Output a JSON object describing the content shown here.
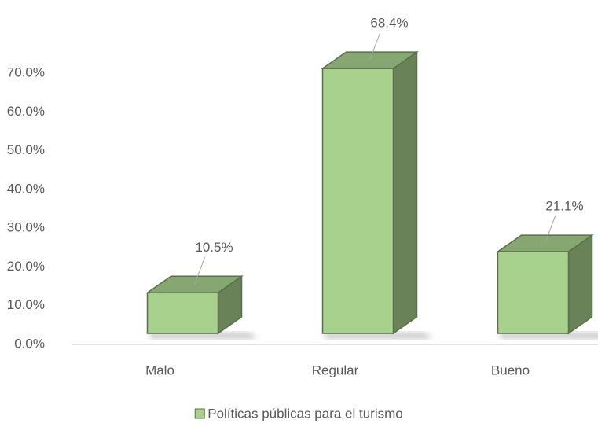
{
  "chart_data": {
    "type": "bar3d",
    "categories": [
      "Malo",
      "Regular",
      "Bueno"
    ],
    "series": [
      {
        "name": "Políticas públicas para el turismo",
        "color": "#a9d18e",
        "values": [
          10.5,
          68.4,
          21.1
        ],
        "value_labels": [
          "10.5%",
          "68.4%",
          "21.1%"
        ]
      }
    ],
    "ylim": [
      0,
      80
    ],
    "yticks": [
      {
        "value": 0,
        "label": "0.0%"
      },
      {
        "value": 10,
        "label": "10.0%"
      },
      {
        "value": 20,
        "label": "20.0%"
      },
      {
        "value": 30,
        "label": "30.0%"
      },
      {
        "value": 40,
        "label": "40.0%"
      },
      {
        "value": 50,
        "label": "50.0%"
      },
      {
        "value": 60,
        "label": "60.0%"
      },
      {
        "value": 70,
        "label": "70.0%"
      }
    ],
    "legend": "bottom"
  }
}
